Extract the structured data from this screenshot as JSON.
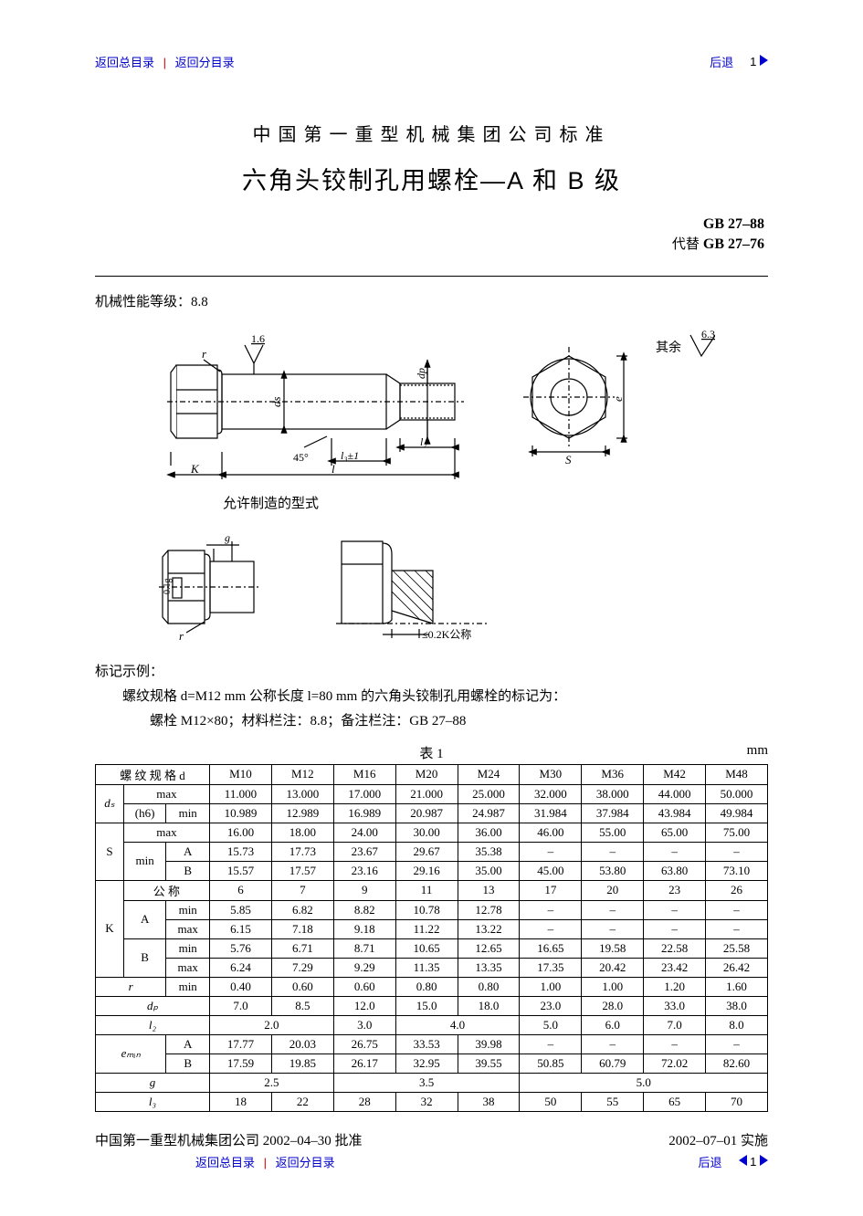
{
  "nav": {
    "link_main": "返回总目录",
    "link_sub": "返回分目录",
    "back": "后退",
    "page": "1",
    "link_color": "#0000cc",
    "sep_color": "#cc0000",
    "tri_color": "#0000cc"
  },
  "head": {
    "org": "中国第一重型机械集团公司标准",
    "title": "六角头铰制孔用螺栓—A 和 B 级",
    "standard": "GB 27–88",
    "replaces_label": "代替",
    "replaces": "GB 27–76"
  },
  "mech": {
    "label": "机械性能等级：",
    "value": "8.8"
  },
  "diagram1": {
    "labels": {
      "r": "r",
      "rough": "1.6",
      "ds": "ds",
      "dp": "dp",
      "l2": "l₂",
      "l3": "l₃±1",
      "ang": "45°",
      "K": "K",
      "l": "l",
      "S": "S",
      "e": "e",
      "extra": "其余",
      "extra_val": "6.3"
    },
    "caption": "允许制造的型式"
  },
  "diagram2": {
    "labels": {
      "g": "g",
      "tol": "0.1g",
      "r": "r",
      "kspec": "≤0.2K公称"
    }
  },
  "example": {
    "h": "标记示例：",
    "line1": "螺纹规格 d=M12 mm  公称长度 l=80 mm 的六角头铰制孔用螺栓的标记为：",
    "line2": "螺栓   M12×80；材料栏注：8.8；备注栏注：GB 27–88"
  },
  "table": {
    "caption": "表 1",
    "unit": "mm",
    "head": {
      "thread": "螺 纹 规 格 d"
    },
    "cols": [
      "M10",
      "M12",
      "M16",
      "M20",
      "M24",
      "M30",
      "M36",
      "M42",
      "M48"
    ],
    "rows": {
      "ds_label": "dₛ",
      "h6": "(h6)",
      "ds_max": [
        "11.000",
        "13.000",
        "17.000",
        "21.000",
        "25.000",
        "32.000",
        "38.000",
        "44.000",
        "50.000"
      ],
      "ds_min": [
        "10.989",
        "12.989",
        "16.989",
        "20.987",
        "24.987",
        "31.984",
        "37.984",
        "43.984",
        "49.984"
      ],
      "S": "S",
      "S_max": [
        "16.00",
        "18.00",
        "24.00",
        "30.00",
        "36.00",
        "46.00",
        "55.00",
        "65.00",
        "75.00"
      ],
      "S_minA": [
        "15.73",
        "17.73",
        "23.67",
        "29.67",
        "35.38",
        "–",
        "–",
        "–",
        "–"
      ],
      "S_minB": [
        "15.57",
        "17.57",
        "23.16",
        "29.16",
        "35.00",
        "45.00",
        "53.80",
        "63.80",
        "73.10"
      ],
      "K": "K",
      "K_nom_lab": "公    称",
      "K_nom": [
        "6",
        "7",
        "9",
        "11",
        "13",
        "17",
        "20",
        "23",
        "26"
      ],
      "KA_min": [
        "5.85",
        "6.82",
        "8.82",
        "10.78",
        "12.78",
        "–",
        "–",
        "–",
        "–"
      ],
      "KA_max": [
        "6.15",
        "7.18",
        "9.18",
        "11.22",
        "13.22",
        "–",
        "–",
        "–",
        "–"
      ],
      "KB_min": [
        "5.76",
        "6.71",
        "8.71",
        "10.65",
        "12.65",
        "16.65",
        "19.58",
        "22.58",
        "25.58"
      ],
      "KB_max": [
        "6.24",
        "7.29",
        "9.29",
        "11.35",
        "13.35",
        "17.35",
        "20.42",
        "23.42",
        "26.42"
      ],
      "r_lab": "r",
      "min_lab": "min",
      "max_lab": "max",
      "A_lab": "A",
      "B_lab": "B",
      "r_min": [
        "0.40",
        "0.60",
        "0.60",
        "0.80",
        "0.80",
        "1.00",
        "1.00",
        "1.20",
        "1.60"
      ],
      "dp_lab": "dₚ",
      "dp": [
        "7.0",
        "8.5",
        "12.0",
        "15.0",
        "18.0",
        "23.0",
        "28.0",
        "33.0",
        "38.0"
      ],
      "l2_lab": "l₂",
      "l2": [
        {
          "span": 2,
          "v": "2.0"
        },
        {
          "span": 1,
          "v": "3.0"
        },
        {
          "span": 2,
          "v": "4.0"
        },
        {
          "span": 1,
          "v": "5.0"
        },
        {
          "span": 1,
          "v": "6.0"
        },
        {
          "span": 1,
          "v": "7.0"
        },
        {
          "span": 1,
          "v": "8.0"
        }
      ],
      "emin_lab": "eₘᵢₙ",
      "e_A": [
        "17.77",
        "20.03",
        "26.75",
        "33.53",
        "39.98",
        "–",
        "–",
        "–",
        "–"
      ],
      "e_B": [
        "17.59",
        "19.85",
        "26.17",
        "32.95",
        "39.55",
        "50.85",
        "60.79",
        "72.02",
        "82.60"
      ],
      "g_lab": "g",
      "g": [
        {
          "span": 2,
          "v": "2.5"
        },
        {
          "span": 3,
          "v": "3.5"
        },
        {
          "span": 4,
          "v": "5.0"
        }
      ],
      "l3_lab": "l₃",
      "l3": [
        "18",
        "22",
        "28",
        "32",
        "38",
        "50",
        "55",
        "65",
        "70"
      ]
    }
  },
  "footer": {
    "approve": "中国第一重型机械集团公司 2002–04–30 批准",
    "impl": "2002–07–01 实施"
  }
}
